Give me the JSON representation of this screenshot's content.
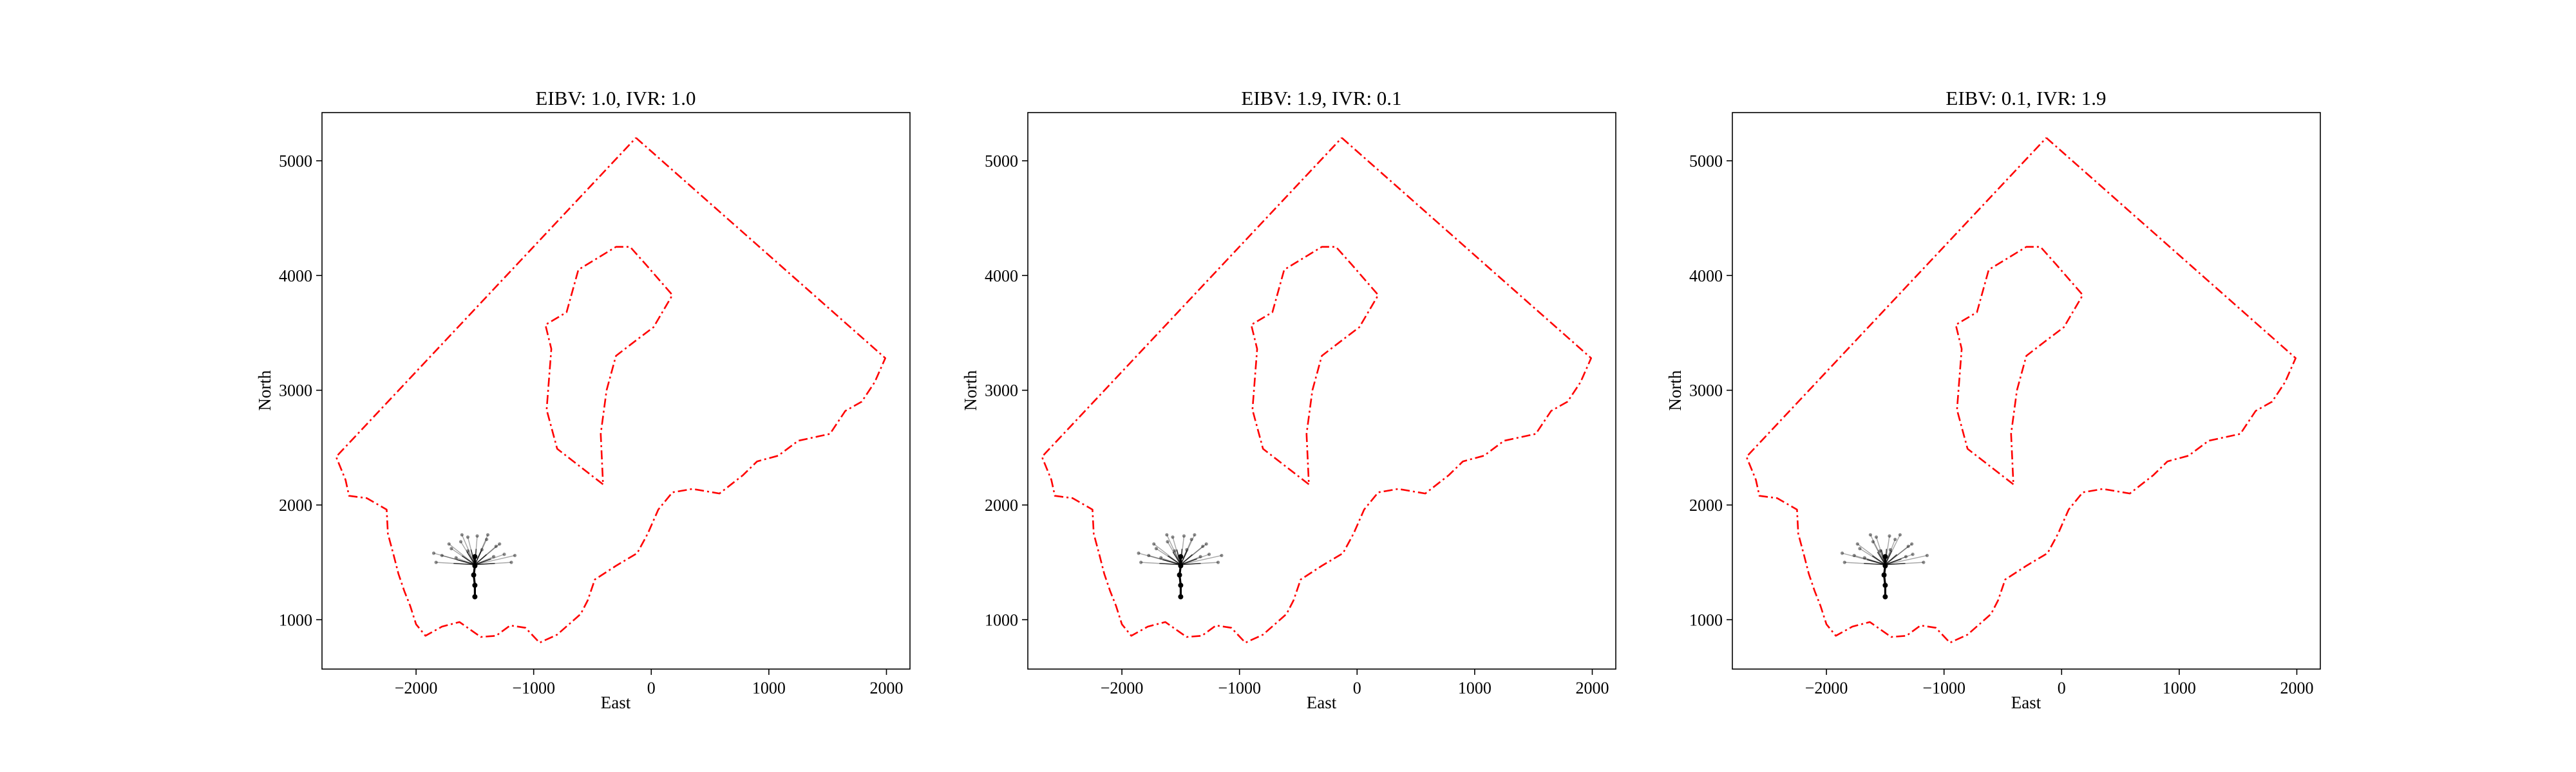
{
  "figure": {
    "background": "#ffffff"
  },
  "chart_data": [
    {
      "type": "line",
      "title": "EIBV: 1.0, IVR: 1.0",
      "xlabel": "East",
      "ylabel": "North",
      "xlim": [
        -2800,
        2200
      ],
      "ylim": [
        570,
        5420
      ],
      "xticks": [
        -2000,
        -1000,
        0,
        1000,
        2000
      ],
      "xtick_labels": [
        "−2000",
        "−1000",
        "0",
        "1000",
        "2000"
      ],
      "yticks": [
        1000,
        2000,
        3000,
        4000,
        5000
      ],
      "ytick_labels": [
        "1000",
        "2000",
        "3000",
        "4000",
        "5000"
      ],
      "grid": false,
      "boundary_color": "#ff0000",
      "path_color": "#000000",
      "variant": 0
    },
    {
      "type": "line",
      "title": "EIBV: 1.9, IVR: 0.1",
      "xlabel": "East",
      "ylabel": "North",
      "xlim": [
        -2800,
        2200
      ],
      "ylim": [
        570,
        5420
      ],
      "xticks": [
        -2000,
        -1000,
        0,
        1000,
        2000
      ],
      "xtick_labels": [
        "−2000",
        "−1000",
        "0",
        "1000",
        "2000"
      ],
      "yticks": [
        1000,
        2000,
        3000,
        4000,
        5000
      ],
      "ytick_labels": [
        "1000",
        "2000",
        "3000",
        "4000",
        "5000"
      ],
      "grid": false,
      "boundary_color": "#ff0000",
      "path_color": "#000000",
      "variant": 1
    },
    {
      "type": "line",
      "title": "EIBV: 0.1, IVR: 1.9",
      "xlabel": "East",
      "ylabel": "North",
      "xlim": [
        -2800,
        2200
      ],
      "ylim": [
        570,
        5420
      ],
      "xticks": [
        -2000,
        -1000,
        0,
        1000,
        2000
      ],
      "xtick_labels": [
        "−2000",
        "−1000",
        "0",
        "1000",
        "2000"
      ],
      "yticks": [
        1000,
        2000,
        3000,
        4000,
        5000
      ],
      "ytick_labels": [
        "1000",
        "2000",
        "3000",
        "4000",
        "5000"
      ],
      "grid": false,
      "boundary_color": "#ff0000",
      "path_color": "#000000",
      "variant": 2
    }
  ],
  "operational_area": {
    "outer_boundary": [
      [
        -130,
        5200
      ],
      [
        1990,
        3280
      ],
      [
        1900,
        3070
      ],
      [
        1790,
        2900
      ],
      [
        1650,
        2820
      ],
      [
        1520,
        2620
      ],
      [
        1250,
        2560
      ],
      [
        1080,
        2430
      ],
      [
        900,
        2380
      ],
      [
        780,
        2260
      ],
      [
        580,
        2100
      ],
      [
        350,
        2140
      ],
      [
        180,
        2110
      ],
      [
        60,
        1960
      ],
      [
        -30,
        1750
      ],
      [
        -120,
        1580
      ],
      [
        -300,
        1470
      ],
      [
        -480,
        1350
      ],
      [
        -540,
        1170
      ],
      [
        -600,
        1050
      ],
      [
        -800,
        870
      ],
      [
        -950,
        800
      ],
      [
        -1070,
        930
      ],
      [
        -1200,
        950
      ],
      [
        -1320,
        860
      ],
      [
        -1450,
        850
      ],
      [
        -1630,
        980
      ],
      [
        -1780,
        940
      ],
      [
        -1920,
        860
      ],
      [
        -2000,
        960
      ],
      [
        -2050,
        1120
      ],
      [
        -2100,
        1250
      ],
      [
        -2150,
        1400
      ],
      [
        -2190,
        1560
      ],
      [
        -2240,
        1750
      ],
      [
        -2250,
        1960
      ],
      [
        -2420,
        2060
      ],
      [
        -2570,
        2080
      ],
      [
        -2600,
        2220
      ],
      [
        -2680,
        2420
      ],
      [
        -130,
        5200
      ]
    ],
    "inner_boundary": [
      [
        -410,
        2180
      ],
      [
        -800,
        2490
      ],
      [
        -890,
        2830
      ],
      [
        -850,
        3360
      ],
      [
        -900,
        3570
      ],
      [
        -720,
        3680
      ],
      [
        -620,
        4050
      ],
      [
        -300,
        4250
      ],
      [
        -180,
        4250
      ],
      [
        -50,
        4100
      ],
      [
        180,
        3830
      ],
      [
        20,
        3550
      ],
      [
        -110,
        3450
      ],
      [
        -300,
        3300
      ],
      [
        -380,
        3000
      ],
      [
        -430,
        2620
      ],
      [
        -410,
        2180
      ]
    ]
  },
  "vehicle_path": {
    "trunk": [
      [
        -1500,
        1200
      ],
      [
        -1500,
        1300
      ],
      [
        -1510,
        1390
      ],
      [
        -1500,
        1470
      ],
      [
        -1500,
        1550
      ]
    ],
    "fan_origin": [
      -1500,
      1480
    ],
    "fan_branches": [
      [
        -1830,
        1500
      ],
      [
        -1780,
        1560
      ],
      [
        -1700,
        1620
      ],
      [
        -1620,
        1680
      ],
      [
        -1560,
        1720
      ],
      [
        -1480,
        1730
      ],
      [
        -1400,
        1700
      ],
      [
        -1320,
        1640
      ],
      [
        -1250,
        1570
      ],
      [
        -1190,
        1500
      ],
      [
        -1660,
        1540
      ],
      [
        -1560,
        1600
      ],
      [
        -1440,
        1610
      ],
      [
        -1340,
        1550
      ],
      [
        -1720,
        1660
      ],
      [
        -1290,
        1660
      ],
      [
        -1610,
        1740
      ],
      [
        -1390,
        1740
      ],
      [
        -1850,
        1580
      ],
      [
        -1160,
        1560
      ]
    ]
  }
}
